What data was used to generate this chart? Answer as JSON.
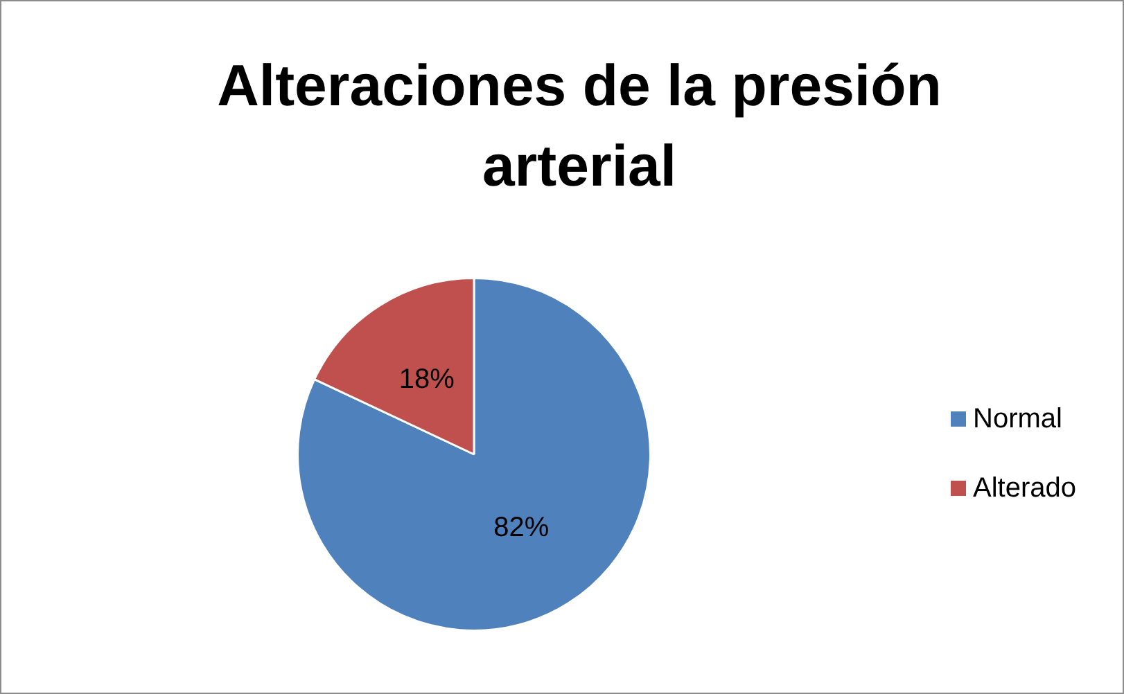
{
  "chart_data": {
    "type": "pie",
    "title": "Alteraciones de la presión arterial",
    "categories": [
      "Normal",
      "Alterado"
    ],
    "values": [
      82,
      18
    ],
    "colors": [
      "#4f81bd",
      "#c0504d"
    ],
    "value_labels": [
      "82%",
      "18%"
    ],
    "legend": "right"
  }
}
